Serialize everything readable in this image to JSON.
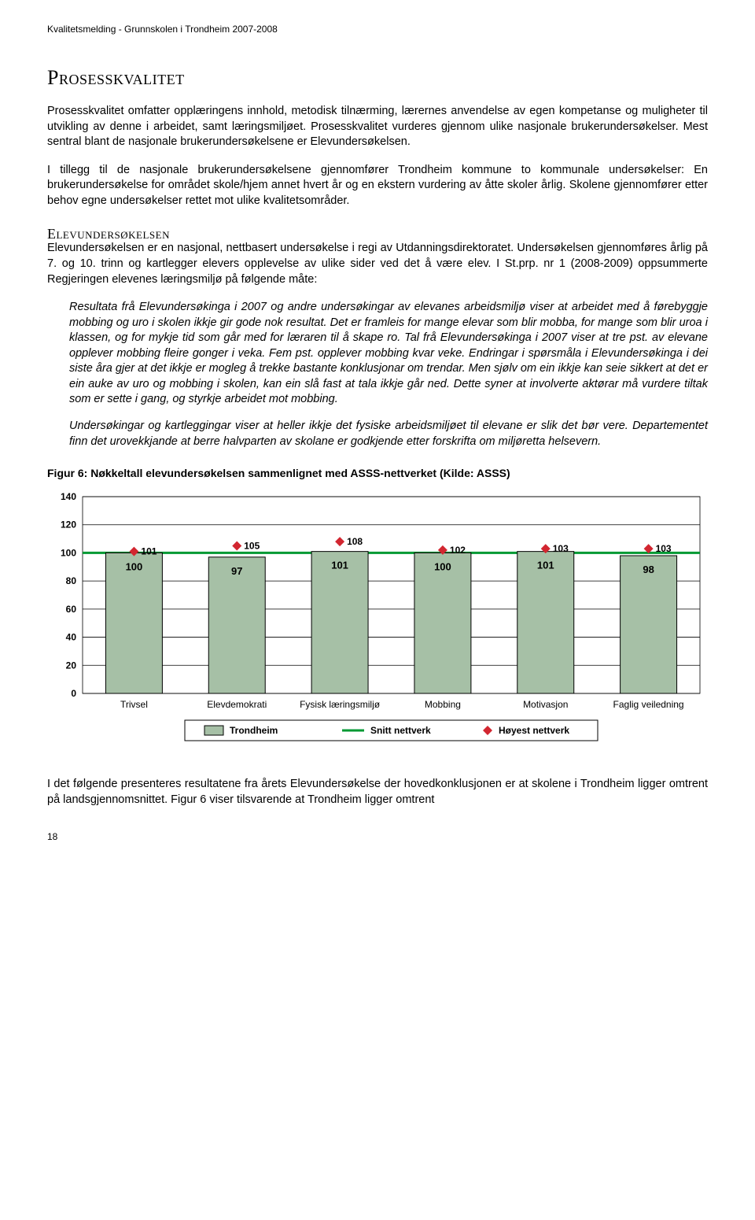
{
  "header_running": "Kvalitetsmelding - Grunnskolen i Trondheim 2007-2008",
  "title_main": "Prosesskvalitet",
  "para1": "Prosesskvalitet omfatter opplæringens innhold, metodisk tilnærming, lærernes anvendelse av egen kompetanse og muligheter til utvikling av denne i arbeidet, samt læringsmiljøet. Prosesskvalitet vurderes gjennom ulike nasjonale brukerundersøkelser. Mest sentral blant de nasjonale brukerundersøkelsene er Elevundersøkelsen.",
  "para2": "I tillegg til de nasjonale brukerundersøkelsene gjennomfører Trondheim kommune to kommunale undersøkelser: En brukerundersøkelse for området skole/hjem annet hvert år og en ekstern vurdering av åtte skoler årlig. Skolene gjennomfører etter behov egne undersøkelser rettet mot ulike kvalitetsområder.",
  "section_heading": "Elevundersøkelsen",
  "para3": "Elevundersøkelsen er en nasjonal, nettbasert undersøkelse i regi av Utdanningsdirektoratet. Undersøkelsen gjennomføres årlig på 7. og 10. trinn og kartlegger elevers opplevelse av ulike sider ved det å være elev. I St.prp. nr 1 (2008-2009) oppsummerte Regjeringen elevenes læringsmiljø på følgende måte:",
  "italic1": "Resultata frå Elevundersøkinga i 2007 og andre undersøkingar av elevanes arbeidsmiljø viser at arbeidet med å førebyggje mobbing og uro i skolen ikkje gir gode nok resultat. Det er framleis for mange elevar som blir mobba, for mange som blir uroa i klassen, og for mykje tid som går med for læraren til å skape ro. Tal frå Elevundersøkinga i 2007 viser at tre pst. av elevane opplever mobbing fleire gonger i veka. Fem pst. opplever mobbing kvar veke. Endringar i spørsmåla i Elevundersøkinga i dei siste åra gjer at det ikkje er mogleg å trekke bastante konklusjonar om trendar. Men sjølv om ein ikkje kan seie sikkert at det er ein auke av uro og mobbing i skolen, kan ein slå fast at tala ikkje går ned. Dette syner at involverte aktørar må vurdere tiltak som er sette i gang, og styrkje arbeidet mot mobbing.",
  "italic2": "Undersøkingar og kartleggingar viser at heller ikkje det fysiske arbeidsmiljøet til elevane er slik det bør vere. Departementet finn det urovekkjande at berre halvparten av skolane er godkjende etter forskrifta om miljøretta helsevern.",
  "figure_caption": "Figur 6: Nøkkeltall elevundersøkelsen sammenlignet med ASSS-nettverket (Kilde: ASSS)",
  "footer_text": "I det følgende presenteres resultatene fra årets Elevundersøkelse der hovedkonklusjonen er at skolene i Trondheim ligger omtrent på landsgjennomsnittet. Figur 6 viser tilsvarende at Trondheim ligger omtrent",
  "page_num": "18",
  "chart": {
    "type": "bar",
    "categories": [
      "Trivsel",
      "Elevdemokrati",
      "Fysisk læringsmiljø",
      "Mobbing",
      "Motivasjon",
      "Faglig veiledning"
    ],
    "bar_values": [
      100,
      97,
      101,
      100,
      101,
      98
    ],
    "marker_values": [
      101,
      105,
      108,
      102,
      103,
      103
    ],
    "snitt_value": 100,
    "ylim": [
      0,
      140
    ],
    "ytick_step": 20,
    "yticks": [
      0,
      20,
      40,
      60,
      80,
      100,
      120,
      140
    ],
    "bar_color": "#a6c0a6",
    "bar_border": "#000000",
    "marker_color": "#d22630",
    "snitt_color": "#009933",
    "grid_color": "#000000",
    "background_color": "#ffffff",
    "axis_font_size": 12,
    "label_font_size": 12,
    "value_label_font_size": 13,
    "bar_width_ratio": 0.55,
    "legend": {
      "items": [
        "Trondheim",
        "Snitt nettverk",
        "Høyest nettverk"
      ],
      "box_border": "#000000"
    }
  }
}
